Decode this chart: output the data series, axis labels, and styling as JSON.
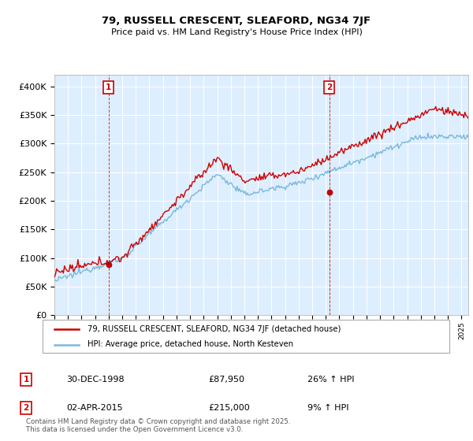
{
  "title": "79, RUSSELL CRESCENT, SLEAFORD, NG34 7JF",
  "subtitle": "Price paid vs. HM Land Registry's House Price Index (HPI)",
  "legend_line1": "79, RUSSELL CRESCENT, SLEAFORD, NG34 7JF (detached house)",
  "legend_line2": "HPI: Average price, detached house, North Kesteven",
  "annotation1_label": "1",
  "annotation1_date": "30-DEC-1998",
  "annotation1_price": "£87,950",
  "annotation1_hpi": "26% ↑ HPI",
  "annotation2_label": "2",
  "annotation2_date": "02-APR-2015",
  "annotation2_price": "£215,000",
  "annotation2_hpi": "9% ↑ HPI",
  "footer": "Contains HM Land Registry data © Crown copyright and database right 2025.\nThis data is licensed under the Open Government Licence v3.0.",
  "sale1_year": 1999.0,
  "sale1_price": 87950,
  "sale2_year": 2015.25,
  "sale2_price": 215000,
  "hpi_color": "#7ab8d9",
  "price_color": "#cc0000",
  "sale_dot_color": "#cc0000",
  "annotation_box_color": "#cc0000",
  "bg_color": "#ddeeff",
  "ylim_min": 0,
  "ylim_max": 420000,
  "yticks": [
    0,
    50000,
    100000,
    150000,
    200000,
    250000,
    300000,
    350000,
    400000
  ],
  "xmin": 1995,
  "xmax": 2025.5
}
